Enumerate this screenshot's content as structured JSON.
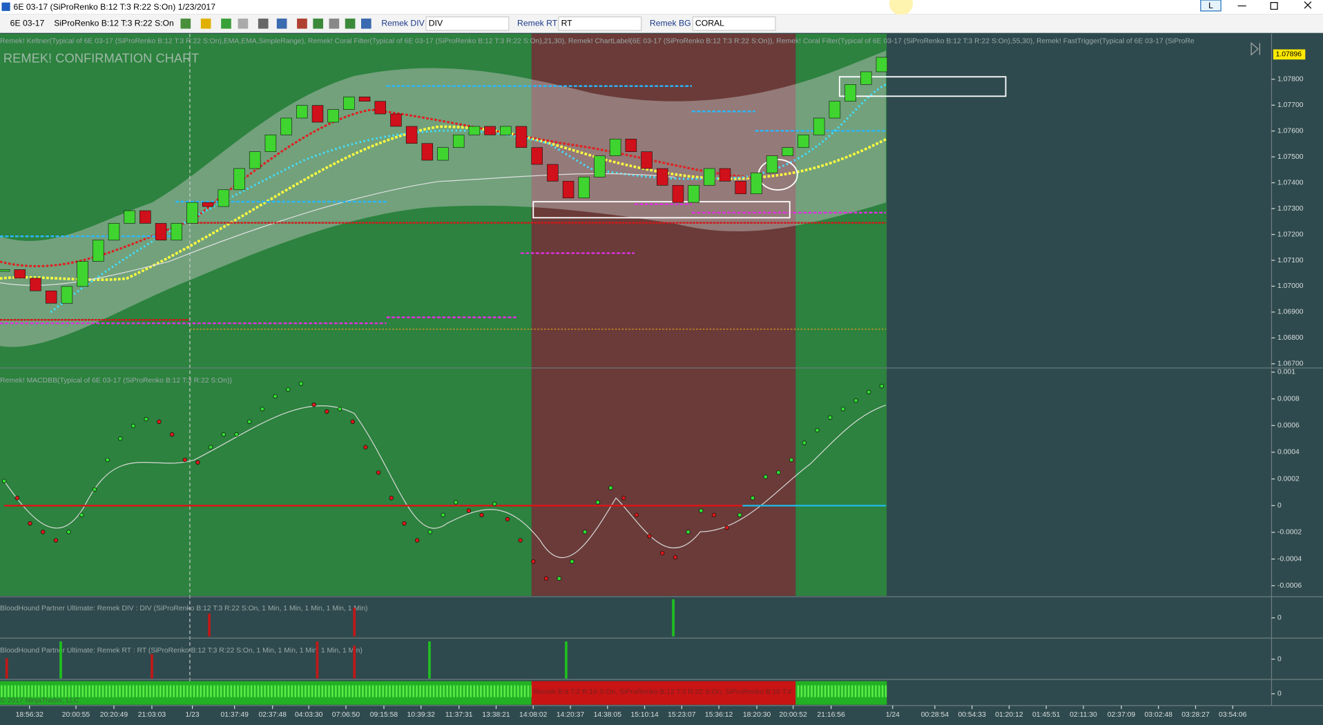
{
  "window": {
    "title": "6E 03-17 (SiProRenko B:12 T:3 R:22 S:On)  1/23/2017",
    "toolbar": {
      "instrument": "6E 03-17",
      "bar_type": "SiProRenko B:12 T:3 R:22 S:On",
      "div_label": "Remek DIV",
      "div_value": "DIV",
      "rt_label": "Remek RT",
      "rt_value": "RT",
      "bg_label": "Remek BG",
      "bg_value": "CORAL",
      "account_button": "L"
    }
  },
  "price_panel": {
    "indicators": "Remek! Keltner(Typical of 6E 03-17 (SiProRenko B:12 T:3 R:22 S:On),EMA,EMA,SimpleRange), Remek! Coral Filter(Typical of 6E 03-17 (SiProRenko B:12 T:3 R:22 S:On),21,30), Remek! ChartLabel(6E 03-17 (SiProRenko B:12 T:3 R:22 S:On)), Remek! Coral Filter(Typical of 6E 03-17 (SiProRenko B:12 T:3 R:22 S:On),55,30), Remek! FastTrigger(Typical of 6E 03-17 (SiProRe",
    "chart_label": "REMEK! CONFIRMATION CHART",
    "last_price": {
      "value": 1.07896,
      "label": "1.07896"
    },
    "ylim": [
      1.06687,
      1.07976
    ],
    "yticks": [
      {
        "value": 1.078,
        "label": "1.07800"
      },
      {
        "value": 1.077,
        "label": "1.07700"
      },
      {
        "value": 1.076,
        "label": "1.07600"
      },
      {
        "value": 1.075,
        "label": "1.07500"
      },
      {
        "value": 1.074,
        "label": "1.07400"
      },
      {
        "value": 1.073,
        "label": "1.07300"
      },
      {
        "value": 1.072,
        "label": "1.07200"
      },
      {
        "value": 1.071,
        "label": "1.07100"
      },
      {
        "value": 1.07,
        "label": "1.07000"
      },
      {
        "value": 1.069,
        "label": "1.06900"
      },
      {
        "value": 1.068,
        "label": "1.06800"
      },
      {
        "value": 1.067,
        "label": "1.06700"
      }
    ],
    "up_color": "#3fd42f",
    "down_color": "#d0101a",
    "closes": [
      1.07064,
      1.07031,
      1.06982,
      1.06934,
      1.06999,
      1.07096,
      1.07178,
      1.07243,
      1.07292,
      1.07243,
      1.07178,
      1.07243,
      1.07324,
      1.07308,
      1.07373,
      1.07455,
      1.0752,
      1.07585,
      1.0765,
      1.07699,
      1.07634,
      1.07683,
      1.07732,
      1.07715,
      1.07666,
      1.07618,
      1.07552,
      1.07487,
      1.07536,
      1.07585,
      1.07618,
      1.07585,
      1.07618,
      1.07536,
      1.07471,
      1.07406,
      1.07341,
      1.07422,
      1.07504,
      1.07569,
      1.0752,
      1.07455,
      1.0739,
      1.07324,
      1.0739,
      1.07455,
      1.07406,
      1.07357,
      1.07438,
      1.07504,
      1.07536,
      1.07585,
      1.0765,
      1.07715,
      1.0778,
      1.07829,
      1.07885
    ]
  },
  "macd_panel": {
    "label": "Remek! MACDBB(Typical of 6E 03-17 (SiProRenko B:12 T:3 R:22 S:On))",
    "ylim": [
      -0.000676,
      0.001025
    ],
    "yticks": [
      0.001,
      0.0008,
      0.0006,
      0.0004,
      0.0002,
      0,
      -0.0002,
      -0.0004,
      -0.0006
    ],
    "values": [
      0.000184,
      5.7e-05,
      -0.000133,
      -0.000197,
      -0.00026,
      -0.000197,
      -7e-05,
      0.000121,
      0.000343,
      0.000502,
      0.000597,
      0.000648,
      0.000629,
      0.000533,
      0.000343,
      0.000324,
      0.000438,
      0.000533,
      0.000533,
      0.000629,
      0.000724,
      0.000819,
      0.00087,
      0.000914,
      0.000756,
      0.000705,
      0.000724,
      0.000629,
      0.000438,
      0.000248,
      5.7e-05,
      -0.000133,
      -0.00026,
      -0.000197,
      -7e-05,
      2.5e-05,
      -3.8e-05,
      -7e-05,
      1.3e-05,
      -0.000102,
      -0.00026,
      -0.000419,
      -0.000546,
      -0.000546,
      -0.000419,
      -0.000197,
      2.5e-05,
      0.000133,
      5.7e-05,
      -7e-05,
      -0.000229,
      -0.000356,
      -0.000387,
      -0.000197,
      -3.8e-05,
      -7e-05,
      -0.000165,
      -7e-05,
      5.7e-05,
      0.000216,
      0.000248,
      0.000343,
      0.00047,
      0.000565,
      0.00066,
      0.000724,
      0.000787,
      0.000851,
      0.000895
    ]
  },
  "div_panel": {
    "label": "BloodHound Partner Ultimate: Remek DIV : DIV (SiProRenko B:12 T:3 R:22 S:On, 1 Min, 1 Min, 1 Min, 1 Min, 1 Min)",
    "ytick": 0
  },
  "rt_panel": {
    "label": "BloodHound Partner Ultimate: Remek RT : RT (SiProRenko B:12 T:3 R:22 S:On, 1 Min, 1 Min, 1 Min, 1 Min, 1 Min)",
    "ytick": 0
  },
  "bg_panel": {
    "series_text": "Remek B:8 T:2 R:16 S:On, SiProRenko B:12 T:3 R:22 S:On, SiProRenko B:16 T:4",
    "copyright": "© 2017 NinjaTrader, LLC",
    "ytick": 0
  },
  "time_axis": {
    "labels": [
      "18:56:32",
      "20:00:55",
      "20:20:49",
      "21:03:03",
      "1/23",
      "01:37:49",
      "02:37:48",
      "04:03:30",
      "07:06:50",
      "09:15:58",
      "10:39:32",
      "11:37:31",
      "13:38:21",
      "14:08:02",
      "14:20:37",
      "14:38:05",
      "15:10:14",
      "15:23:07",
      "15:36:12",
      "18:20:30",
      "20:00:52",
      "21:16:56",
      "1/24",
      "00:28:54",
      "00:54:33",
      "01:20:12",
      "01:45:51",
      "02:11:30",
      "02:37:09",
      "03:02:48",
      "03:28:27",
      "03:54:06"
    ]
  }
}
